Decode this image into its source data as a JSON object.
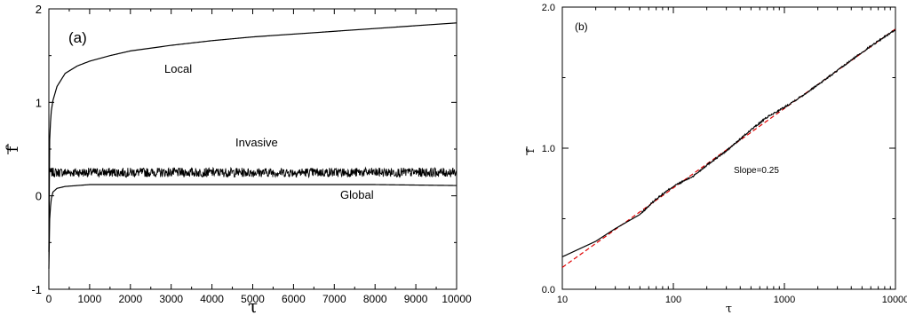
{
  "chart_data": [
    {
      "type": "line",
      "panel_label": "(a)",
      "xlabel": "τ",
      "ylabel": "f",
      "xlim": [
        0,
        10000
      ],
      "ylim": [
        -1,
        2
      ],
      "x_ticks": [
        0,
        1000,
        2000,
        3000,
        4000,
        5000,
        6000,
        7000,
        8000,
        9000,
        10000
      ],
      "y_ticks": [
        -1,
        0,
        1,
        2
      ],
      "grid": false,
      "series": [
        {
          "name": "Local",
          "x": [
            0,
            20,
            50,
            100,
            200,
            400,
            700,
            1000,
            1500,
            2000,
            3000,
            4000,
            5000,
            6000,
            7000,
            8000,
            9000,
            10000
          ],
          "values": [
            -0.6,
            0.6,
            0.88,
            1.02,
            1.17,
            1.31,
            1.39,
            1.44,
            1.5,
            1.55,
            1.61,
            1.66,
            1.7,
            1.73,
            1.76,
            1.79,
            1.82,
            1.85
          ]
        },
        {
          "name": "Invasive",
          "x": [
            0,
            10000
          ],
          "values": [
            0.25,
            0.25
          ],
          "noise_amplitude": 0.05
        },
        {
          "name": "Global",
          "x": [
            0,
            20,
            50,
            100,
            200,
            400,
            700,
            1000,
            2000,
            4000,
            6000,
            8000,
            10000
          ],
          "values": [
            -0.78,
            -0.25,
            -0.05,
            0.04,
            0.08,
            0.1,
            0.11,
            0.12,
            0.12,
            0.12,
            0.12,
            0.12,
            0.11
          ]
        }
      ]
    },
    {
      "type": "line",
      "panel_label": "(b)",
      "xlabel": "τ",
      "ylabel": "f",
      "xscale": "log",
      "xlim": [
        10,
        10000
      ],
      "ylim": [
        0,
        2
      ],
      "x_ticks": [
        10,
        100,
        1000,
        10000
      ],
      "x_tick_labels": [
        "10",
        "100",
        "1000",
        "10000"
      ],
      "y_ticks": [
        0,
        1,
        2
      ],
      "y_tick_labels": [
        "0.0",
        "1.0",
        "2.0"
      ],
      "grid": false,
      "annotation": "Slope=0.25",
      "series": [
        {
          "name": "data",
          "color": "#000000",
          "x": [
            10,
            20,
            30,
            50,
            70,
            100,
            150,
            200,
            300,
            500,
            700,
            1000,
            1500,
            2000,
            3000,
            5000,
            7000,
            10000
          ],
          "values": [
            0.23,
            0.34,
            0.43,
            0.53,
            0.64,
            0.73,
            0.8,
            0.88,
            0.98,
            1.13,
            1.22,
            1.29,
            1.38,
            1.45,
            1.55,
            1.68,
            1.76,
            1.84
          ]
        },
        {
          "name": "fit",
          "color": "#e00000",
          "dashed": true,
          "x": [
            10,
            10000
          ],
          "values": [
            0.155,
            1.845
          ]
        }
      ]
    }
  ]
}
